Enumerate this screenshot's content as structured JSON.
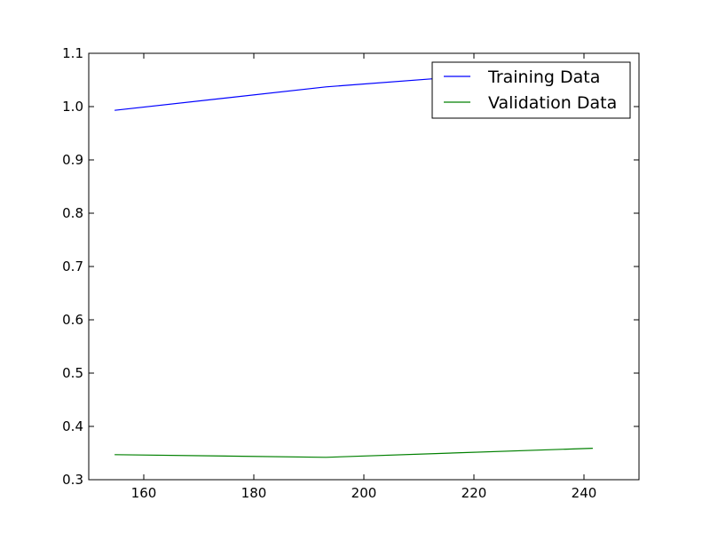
{
  "chart_data": {
    "type": "line",
    "title": "",
    "xlabel": "",
    "ylabel": "",
    "xlim": [
      150,
      250
    ],
    "ylim": [
      0.3,
      1.1
    ],
    "xticks": [
      160,
      180,
      200,
      220,
      240
    ],
    "yticks": [
      0.3,
      0.4,
      0.5,
      0.6,
      0.7,
      0.8,
      0.9,
      1.0,
      1.1
    ],
    "xtick_labels": [
      "160",
      "180",
      "200",
      "220",
      "240"
    ],
    "ytick_labels": [
      "0.3",
      "0.4",
      "0.5",
      "0.6",
      "0.7",
      "0.8",
      "0.9",
      "1.0",
      "1.1"
    ],
    "grid": false,
    "legend_position": "top-right",
    "series": [
      {
        "name": "Training Data",
        "color": "#0000ff",
        "x": [
          154.7,
          193.1,
          241.6
        ],
        "y": [
          0.993,
          1.037,
          1.075
        ]
      },
      {
        "name": "Validation Data",
        "color": "#008000",
        "x": [
          154.7,
          193.1,
          241.6
        ],
        "y": [
          0.347,
          0.342,
          0.359
        ]
      }
    ]
  }
}
